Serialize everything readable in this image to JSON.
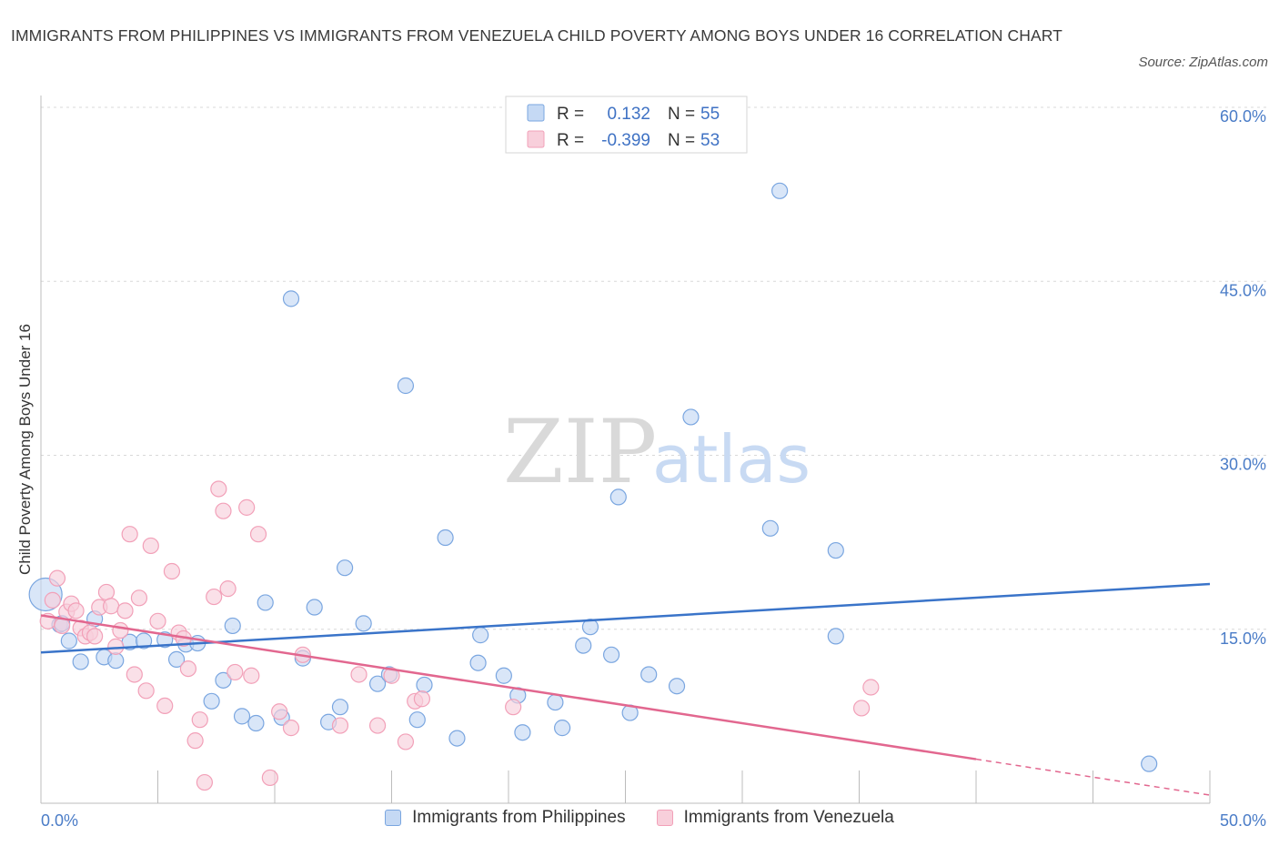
{
  "chart_data": {
    "type": "scatter",
    "title": "IMMIGRANTS FROM PHILIPPINES VS IMMIGRANTS FROM VENEZUELA CHILD POVERTY AMONG BOYS UNDER 16 CORRELATION CHART",
    "source": "Source: ZipAtlas.com",
    "ylabel": "Child Poverty Among Boys Under 16",
    "xlim": [
      0,
      50
    ],
    "ylim": [
      0,
      60
    ],
    "x_tick_labels": [
      "0.0%",
      "50.0%"
    ],
    "y_ticks": [
      {
        "value": 15,
        "label": "15.0%"
      },
      {
        "value": 30,
        "label": "30.0%"
      },
      {
        "value": 45,
        "label": "45.0%"
      },
      {
        "value": 60,
        "label": "60.0%"
      }
    ],
    "grid": "horizontal-dashed",
    "watermark": {
      "zip": "ZIP",
      "atlas": "atlas"
    },
    "stats_legend": {
      "rows": [
        {
          "r_label": "R =",
          "r_value": "0.132",
          "n_label": "N =",
          "n_value": "55"
        },
        {
          "r_label": "R =",
          "r_value": "-0.399",
          "n_label": "N =",
          "n_value": "53"
        }
      ]
    },
    "series": [
      {
        "name": "Immigrants from Philippines",
        "color": "#7aa6e0",
        "fill": "#c5d9f4",
        "line_color": "#3a74c9",
        "trend": {
          "x": [
            0,
            50
          ],
          "y": [
            13.0,
            18.9
          ]
        },
        "points": [
          [
            0.2,
            18.0
          ],
          [
            0.8,
            15.4
          ],
          [
            1.2,
            14.0
          ],
          [
            1.7,
            12.2
          ],
          [
            2.3,
            15.9
          ],
          [
            2.7,
            12.6
          ],
          [
            3.2,
            12.3
          ],
          [
            3.8,
            13.9
          ],
          [
            4.4,
            14.0
          ],
          [
            5.3,
            14.1
          ],
          [
            5.8,
            12.4
          ],
          [
            6.2,
            13.7
          ],
          [
            6.7,
            13.8
          ],
          [
            7.3,
            8.8
          ],
          [
            7.8,
            10.6
          ],
          [
            8.2,
            15.3
          ],
          [
            8.6,
            7.5
          ],
          [
            9.2,
            6.9
          ],
          [
            9.6,
            17.3
          ],
          [
            10.3,
            7.4
          ],
          [
            10.7,
            43.5
          ],
          [
            11.2,
            12.5
          ],
          [
            11.7,
            16.9
          ],
          [
            12.3,
            7.0
          ],
          [
            12.8,
            8.3
          ],
          [
            13.0,
            20.3
          ],
          [
            13.8,
            15.5
          ],
          [
            14.4,
            10.3
          ],
          [
            14.9,
            11.1
          ],
          [
            15.6,
            36.0
          ],
          [
            16.1,
            7.2
          ],
          [
            16.4,
            10.2
          ],
          [
            17.3,
            22.9
          ],
          [
            17.8,
            5.6
          ],
          [
            18.7,
            12.1
          ],
          [
            18.8,
            14.5
          ],
          [
            19.8,
            11.0
          ],
          [
            20.4,
            9.3
          ],
          [
            20.6,
            6.1
          ],
          [
            22.0,
            8.7
          ],
          [
            22.3,
            6.5
          ],
          [
            23.2,
            13.6
          ],
          [
            23.5,
            15.2
          ],
          [
            24.4,
            12.8
          ],
          [
            24.7,
            26.4
          ],
          [
            25.2,
            7.8
          ],
          [
            26.0,
            11.1
          ],
          [
            27.2,
            10.1
          ],
          [
            27.8,
            33.3
          ],
          [
            31.2,
            23.7
          ],
          [
            31.6,
            52.8
          ],
          [
            34.0,
            21.8
          ],
          [
            34.0,
            14.4
          ],
          [
            47.4,
            3.4
          ],
          [
            0.9,
            15.5
          ]
        ]
      },
      {
        "name": "Immigrants from Venezuela",
        "color": "#f2a0b8",
        "fill": "#f8cfdb",
        "line_color": "#e2678f",
        "trend": {
          "x": [
            0,
            40
          ],
          "y": [
            16.2,
            3.8
          ]
        },
        "trend_dashed": {
          "x": [
            40,
            50
          ],
          "y": [
            3.8,
            0.7
          ]
        },
        "points": [
          [
            0.3,
            15.7
          ],
          [
            0.5,
            17.5
          ],
          [
            0.7,
            19.4
          ],
          [
            0.9,
            15.3
          ],
          [
            1.1,
            16.5
          ],
          [
            1.3,
            17.2
          ],
          [
            1.5,
            16.6
          ],
          [
            1.7,
            15.1
          ],
          [
            1.9,
            14.4
          ],
          [
            2.1,
            14.7
          ],
          [
            2.3,
            14.4
          ],
          [
            2.5,
            16.9
          ],
          [
            2.8,
            18.2
          ],
          [
            3.0,
            17.0
          ],
          [
            3.2,
            13.5
          ],
          [
            3.4,
            14.9
          ],
          [
            3.6,
            16.6
          ],
          [
            3.8,
            23.2
          ],
          [
            4.0,
            11.1
          ],
          [
            4.2,
            17.7
          ],
          [
            4.5,
            9.7
          ],
          [
            4.7,
            22.2
          ],
          [
            5.0,
            15.7
          ],
          [
            5.3,
            8.4
          ],
          [
            5.6,
            20.0
          ],
          [
            5.9,
            14.7
          ],
          [
            6.1,
            14.2
          ],
          [
            6.3,
            11.6
          ],
          [
            6.6,
            5.4
          ],
          [
            6.8,
            7.2
          ],
          [
            7.0,
            1.8
          ],
          [
            7.4,
            17.8
          ],
          [
            7.6,
            27.1
          ],
          [
            7.8,
            25.2
          ],
          [
            8.0,
            18.5
          ],
          [
            8.3,
            11.3
          ],
          [
            8.8,
            25.5
          ],
          [
            9.0,
            11.0
          ],
          [
            9.3,
            23.2
          ],
          [
            9.8,
            2.2
          ],
          [
            10.2,
            7.9
          ],
          [
            10.7,
            6.5
          ],
          [
            11.2,
            12.8
          ],
          [
            12.8,
            6.7
          ],
          [
            13.6,
            11.1
          ],
          [
            14.4,
            6.7
          ],
          [
            15.0,
            11.0
          ],
          [
            15.6,
            5.3
          ],
          [
            16.0,
            8.8
          ],
          [
            16.3,
            9.0
          ],
          [
            20.2,
            8.3
          ],
          [
            35.1,
            8.2
          ],
          [
            35.5,
            10.0
          ]
        ]
      }
    ]
  }
}
